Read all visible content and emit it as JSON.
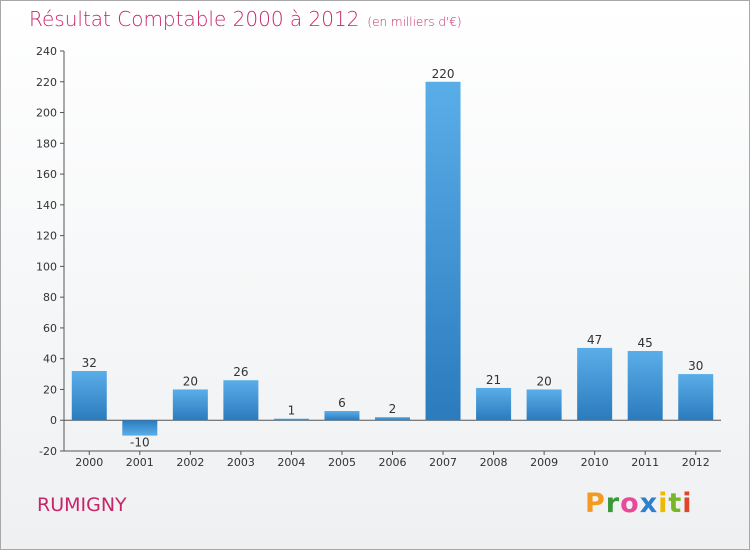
{
  "chart_data": {
    "type": "bar",
    "title": "Résultat Comptable 2000 à 2012",
    "subtitle": "(en milliers d'€)",
    "categories": [
      "2000",
      "2001",
      "2002",
      "2003",
      "2004",
      "2005",
      "2006",
      "2007",
      "2008",
      "2009",
      "2010",
      "2011",
      "2012"
    ],
    "values": [
      32,
      -10,
      20,
      26,
      1,
      6,
      2,
      220,
      21,
      20,
      47,
      45,
      30
    ],
    "ylim": [
      -20,
      240
    ],
    "yticks": [
      -20,
      0,
      20,
      40,
      60,
      80,
      100,
      120,
      140,
      160,
      180,
      200,
      220,
      240
    ],
    "xlabel": "",
    "ylabel": "",
    "grid": false,
    "colors": {
      "bar_top": "#5aaee8",
      "bar_bottom": "#2b7bbd",
      "accent": "#c8246b"
    }
  },
  "commune": "RUMIGNY",
  "logo": {
    "letters": [
      "P",
      "r",
      "o",
      "x",
      "i",
      "t",
      "i"
    ]
  }
}
